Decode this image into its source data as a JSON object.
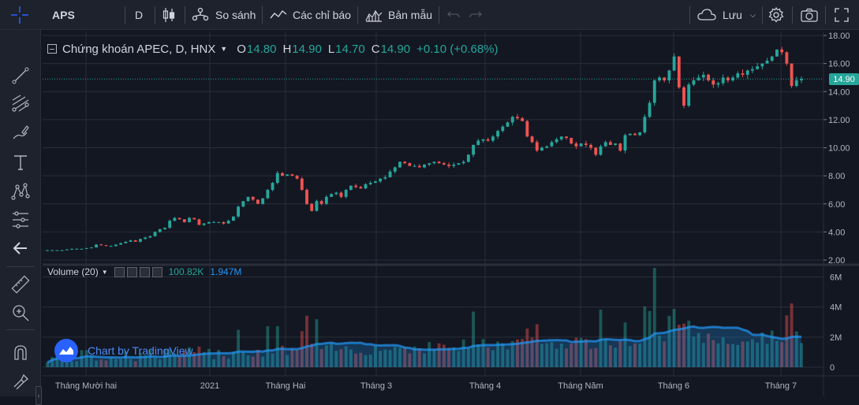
{
  "toolbar": {
    "symbol": "APS",
    "interval": "D",
    "compare_label": "So sánh",
    "indicators_label": "Các chỉ báo",
    "templates_label": "Bản mẫu",
    "save_label": "Lưu"
  },
  "legend": {
    "title": "Chứng khoán APEC, D, HNX",
    "open_label": "O",
    "open": "14.80",
    "high_label": "H",
    "high": "14.90",
    "low_label": "L",
    "low": "14.70",
    "close_label": "C",
    "close": "14.90",
    "change": "+0.10 (+0.68%)"
  },
  "volume_legend": {
    "title": "Volume (20)",
    "volume": "100.82K",
    "ma": "1.947M"
  },
  "last_price_label": "14.90",
  "watermark": "Chart by TradingView",
  "colors": {
    "up": "#26a69a",
    "down": "#ef5350",
    "volume_ma": "#2196f3",
    "background": "#131722",
    "grid": "#2a2e39"
  },
  "left_tools": [
    "crosshair-icon",
    "trend-line-icon",
    "fib-retracement-icon",
    "brush-icon",
    "text-icon",
    "pattern-icon",
    "prediction-icon",
    "back-arrow-icon",
    "ruler-icon",
    "zoom-in-icon",
    "magnet-icon",
    "lock-drawings-icon",
    "lock-icon"
  ],
  "chart_data": {
    "type": "candlestick",
    "symbol": "Chứng khoán APEC, D, HNX",
    "y_ticks": [
      "18.00",
      "16.00",
      "14.00",
      "12.00",
      "10.00",
      "8.00",
      "6.00",
      "4.00",
      "2.00"
    ],
    "ylim": [
      2,
      18
    ],
    "x_tick_labels": [
      "Tháng Mười hai",
      "2021",
      "Tháng Hai",
      "Tháng 3",
      "Tháng 4",
      "Tháng Năm",
      "Tháng 6",
      "Tháng 7"
    ],
    "volume_ticks": [
      "6M",
      "4M",
      "2M",
      "0"
    ],
    "volume_ylim": [
      0,
      6.6
    ],
    "close_series": [
      2.7,
      2.7,
      2.7,
      2.7,
      2.75,
      2.8,
      2.8,
      2.8,
      2.85,
      2.9,
      3.1,
      3.05,
      3.0,
      3.0,
      3.1,
      3.2,
      3.3,
      3.4,
      3.3,
      3.5,
      3.6,
      3.7,
      4.0,
      4.2,
      4.3,
      4.8,
      5.0,
      4.9,
      4.7,
      5.0,
      4.9,
      4.5,
      4.6,
      4.7,
      4.7,
      4.7,
      4.6,
      4.8,
      5.1,
      5.8,
      6.2,
      6.5,
      6.3,
      6.0,
      6.4,
      7.0,
      7.5,
      8.2,
      8.0,
      8.1,
      8.0,
      7.8,
      7.0,
      6.0,
      5.5,
      6.2,
      6.0,
      6.5,
      6.7,
      6.8,
      6.5,
      7.0,
      7.3,
      7.2,
      7.1,
      7.4,
      7.5,
      7.6,
      7.8,
      7.9,
      8.3,
      8.6,
      9.0,
      8.9,
      8.7,
      8.7,
      8.6,
      8.8,
      8.9,
      9.0,
      8.9,
      8.8,
      8.7,
      8.8,
      8.9,
      9.0,
      9.5,
      10.2,
      10.5,
      10.6,
      10.5,
      10.8,
      11.2,
      11.5,
      11.8,
      12.2,
      12.1,
      11.9,
      10.8,
      10.4,
      9.8,
      10.0,
      10.1,
      10.4,
      10.6,
      10.8,
      10.7,
      10.3,
      10.1,
      10.3,
      10.2,
      10.0,
      9.5,
      10.1,
      10.4,
      10.2,
      10.3,
      9.8,
      10.9,
      11.0,
      10.9,
      11.1,
      12.2,
      13.2,
      14.8,
      15.0,
      14.8,
      15.5,
      16.5,
      14.3,
      13.0,
      14.5,
      14.8,
      15.0,
      15.2,
      14.8,
      14.5,
      14.6,
      15.0,
      14.8,
      15.0,
      15.3,
      15.2,
      15.5,
      15.6,
      15.8,
      16.0,
      16.2,
      16.5,
      17.0,
      16.8,
      16.0,
      14.4,
      14.8,
      14.9
    ]
  }
}
